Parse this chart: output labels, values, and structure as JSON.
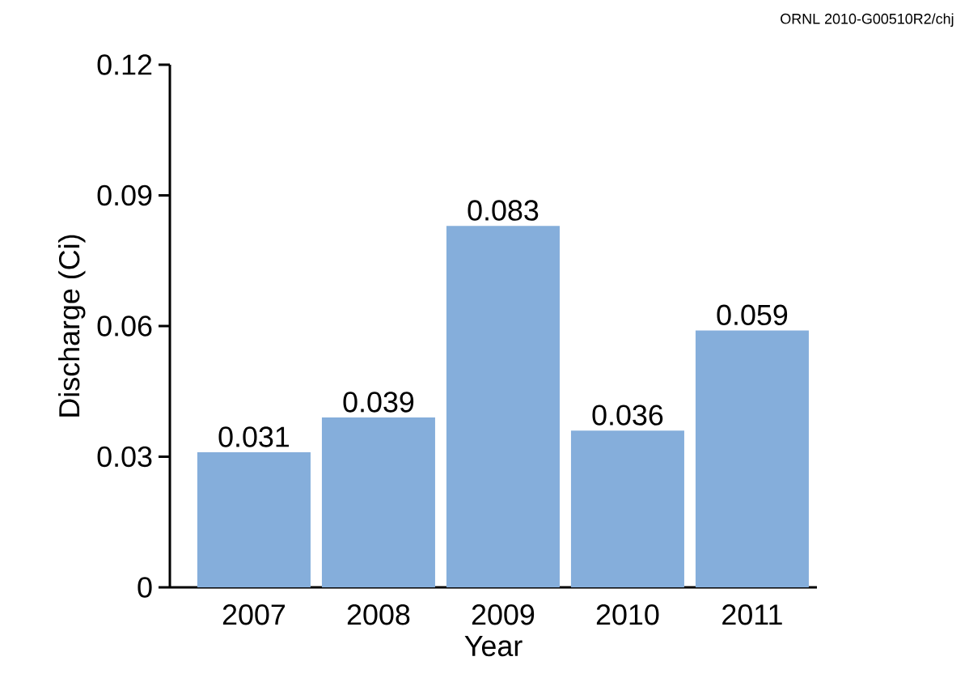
{
  "chart_data": {
    "type": "bar",
    "xlabel": "Year",
    "ylabel": "Discharge (Ci)",
    "categories": [
      "2007",
      "2008",
      "2009",
      "2010",
      "2011"
    ],
    "values": [
      0.031,
      0.039,
      0.083,
      0.036,
      0.059
    ],
    "value_labels": [
      "0.031",
      "0.039",
      "0.083",
      "0.036",
      "0.059"
    ],
    "color": "#85aedb",
    "ylim": [
      0,
      0.12
    ],
    "yticks": [
      0,
      0.03,
      0.06,
      0.09,
      0.12
    ],
    "annotations": [
      "ORNL 2010-G00510R2/chj"
    ]
  }
}
